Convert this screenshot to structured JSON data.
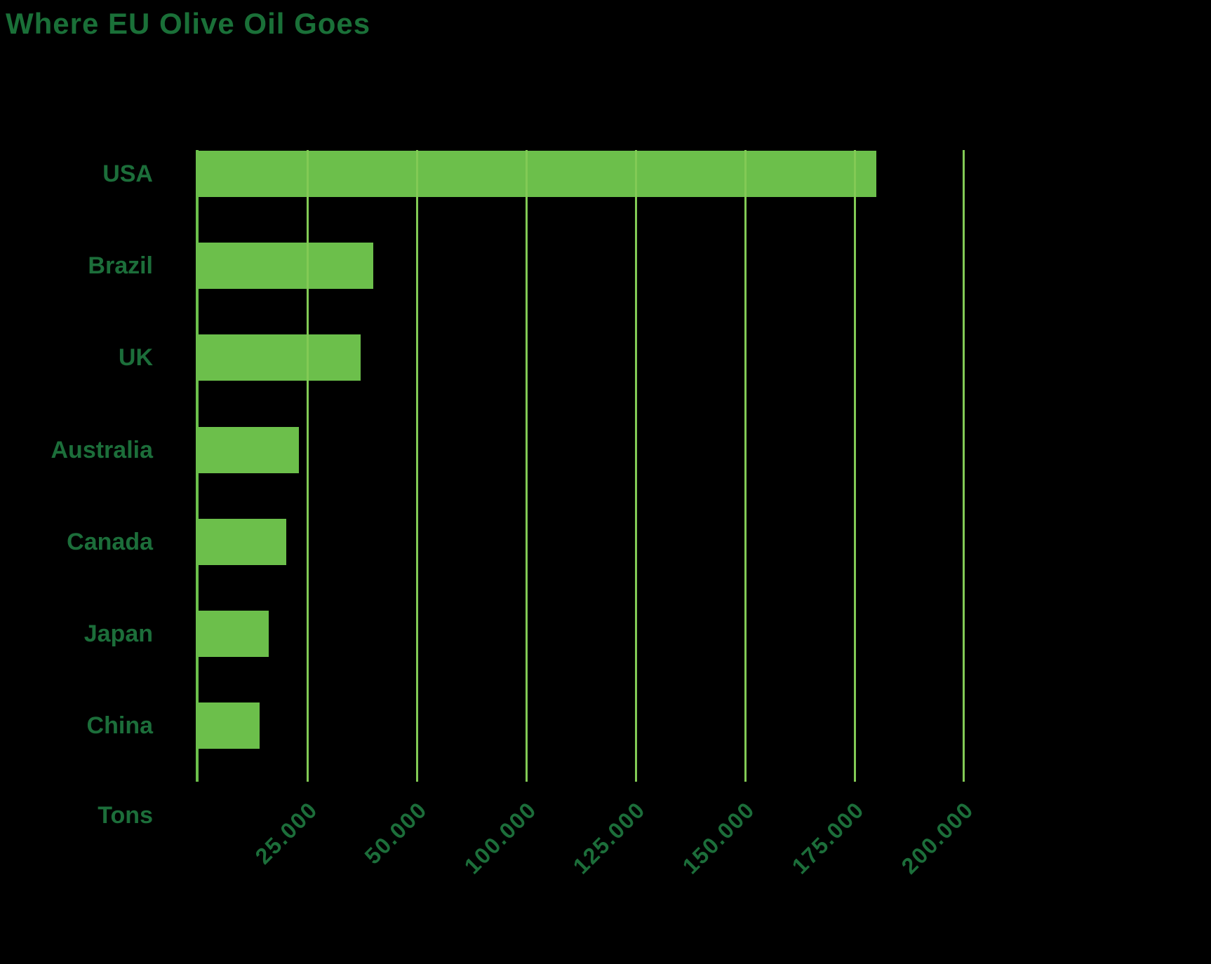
{
  "chart_data": {
    "type": "bar",
    "orientation": "horizontal",
    "title": "Where EU Olive Oil Goes",
    "categories": [
      "USA",
      "Brazil",
      "UK",
      "Australia",
      "Canada",
      "Japan",
      "China"
    ],
    "values": [
      180000,
      40000,
      37000,
      23000,
      20000,
      16000,
      14000
    ],
    "unit_label": "Tons",
    "x_tick_labels": [
      "25.000",
      "50.000",
      "100.000",
      "125.000",
      "150.000",
      "175.000",
      "200.000"
    ],
    "x_tick_values": [
      25000,
      50000,
      100000,
      125000,
      150000,
      175000,
      200000
    ],
    "axis_note": "gridlines evenly spaced; labels jump from 50.000 to 100.000 (no 75.000 tick)",
    "grid": true,
    "legend": false,
    "colors": {
      "background": "#000000",
      "bar": "#6cbf4b",
      "gridline": "#82ca55",
      "title": "#1a7038",
      "label": "#1c6e3a"
    }
  }
}
